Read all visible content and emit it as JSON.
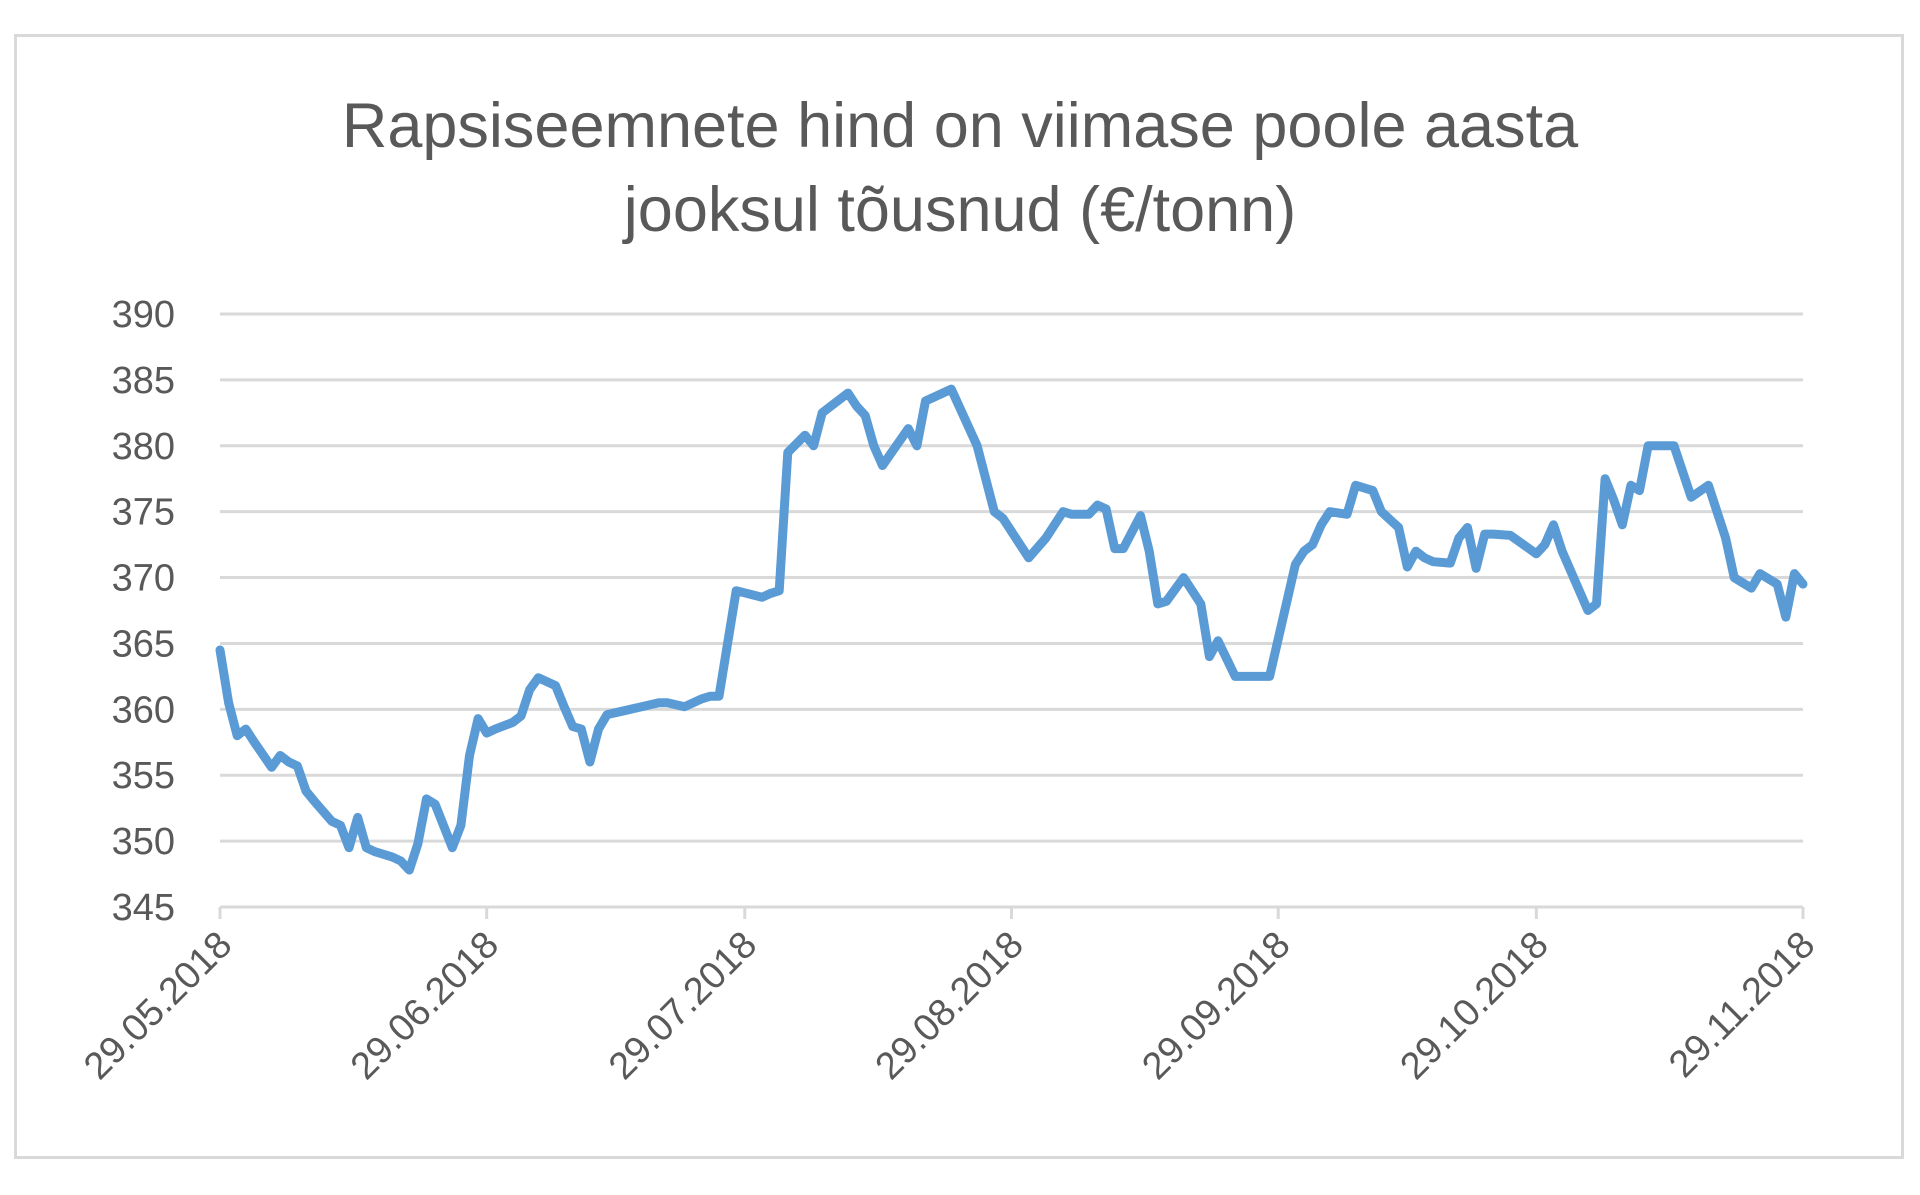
{
  "chart_data": {
    "type": "line",
    "title": "Rapsiseemnete hind on viimase poole aasta\njooksul tõusnud (€/tonn)",
    "xlabel": "",
    "ylabel": "",
    "ylim": [
      345,
      390
    ],
    "yticks": [
      345,
      350,
      355,
      360,
      365,
      370,
      375,
      380,
      385,
      390
    ],
    "xlim": [
      "2018-05-29",
      "2018-11-29"
    ],
    "xtick_labels": [
      "29.05.2018",
      "29.06.2018",
      "29.07.2018",
      "29.08.2018",
      "29.09.2018",
      "29.10.2018",
      "29.11.2018"
    ],
    "xtick_dates": [
      "2018-05-29",
      "2018-06-29",
      "2018-07-29",
      "2018-08-29",
      "2018-09-29",
      "2018-10-29",
      "2018-11-29"
    ],
    "grid": true,
    "legend": "none",
    "line_color": "#5b9bd5",
    "series": [
      {
        "x": [
          "2018-05-29",
          "2018-05-30",
          "2018-05-31",
          "2018-06-01",
          "2018-06-02",
          "2018-06-04",
          "2018-06-05",
          "2018-06-06",
          "2018-06-07",
          "2018-06-08",
          "2018-06-09",
          "2018-06-11",
          "2018-06-12",
          "2018-06-13",
          "2018-06-14",
          "2018-06-15",
          "2018-06-16",
          "2018-06-18",
          "2018-06-19",
          "2018-06-20",
          "2018-06-21",
          "2018-06-22",
          "2018-06-23",
          "2018-06-25",
          "2018-06-26",
          "2018-06-27",
          "2018-06-28",
          "2018-06-29",
          "2018-06-30",
          "2018-07-02",
          "2018-07-03",
          "2018-07-04",
          "2018-07-05",
          "2018-07-07",
          "2018-07-08",
          "2018-07-09",
          "2018-07-10",
          "2018-07-11",
          "2018-07-12",
          "2018-07-13",
          "2018-07-15",
          "2018-07-17",
          "2018-07-19",
          "2018-07-20",
          "2018-07-22",
          "2018-07-24",
          "2018-07-25",
          "2018-07-26",
          "2018-07-27",
          "2018-07-28",
          "2018-07-31",
          "2018-08-01",
          "2018-08-02",
          "2018-08-03",
          "2018-08-05",
          "2018-08-06",
          "2018-08-07",
          "2018-08-08",
          "2018-08-10",
          "2018-08-11",
          "2018-08-12",
          "2018-08-13",
          "2018-08-14",
          "2018-08-17",
          "2018-08-18",
          "2018-08-19",
          "2018-08-21",
          "2018-08-22",
          "2018-08-25",
          "2018-08-27",
          "2018-08-28",
          "2018-08-30",
          "2018-08-31",
          "2018-09-02",
          "2018-09-03",
          "2018-09-04",
          "2018-09-05",
          "2018-09-07",
          "2018-09-08",
          "2018-09-09",
          "2018-09-10",
          "2018-09-11",
          "2018-09-13",
          "2018-09-14",
          "2018-09-15",
          "2018-09-16",
          "2018-09-18",
          "2018-09-19",
          "2018-09-20",
          "2018-09-21",
          "2018-09-22",
          "2018-09-24",
          "2018-09-26",
          "2018-09-28",
          "2018-10-01",
          "2018-10-02",
          "2018-10-03",
          "2018-10-04",
          "2018-10-05",
          "2018-10-07",
          "2018-10-08",
          "2018-10-10",
          "2018-10-11",
          "2018-10-13",
          "2018-10-14",
          "2018-10-15",
          "2018-10-16",
          "2018-10-17",
          "2018-10-19",
          "2018-10-20",
          "2018-10-21",
          "2018-10-22",
          "2018-10-23",
          "2018-10-24",
          "2018-10-26",
          "2018-10-29",
          "2018-10-30",
          "2018-10-31",
          "2018-11-01",
          "2018-11-04",
          "2018-11-05",
          "2018-11-06",
          "2018-11-07",
          "2018-11-08",
          "2018-11-09",
          "2018-11-10",
          "2018-11-11",
          "2018-11-12",
          "2018-11-14",
          "2018-11-16",
          "2018-11-18",
          "2018-11-20",
          "2018-11-21",
          "2018-11-23",
          "2018-11-24",
          "2018-11-26",
          "2018-11-27",
          "2018-11-28",
          "2018-11-29"
        ],
        "y": [
          364.5,
          360.5,
          358,
          358.5,
          357.5,
          355.6,
          356.5,
          356,
          355.7,
          353.8,
          353,
          351.5,
          351.2,
          349.5,
          351.8,
          349.5,
          349.2,
          348.8,
          348.5,
          347.8,
          349.8,
          353.2,
          352.8,
          349.5,
          351.2,
          356.5,
          359.3,
          358.2,
          358.5,
          359,
          359.5,
          361.5,
          362.4,
          361.8,
          360.2,
          358.7,
          358.5,
          356,
          358.5,
          359.6,
          359.9,
          360.2,
          360.5,
          360.5,
          360.2,
          360.8,
          361,
          361,
          365,
          369,
          368.5,
          368.8,
          369,
          379.5,
          380.8,
          380,
          382.5,
          383,
          384,
          383,
          382.3,
          380,
          378.5,
          381.3,
          380,
          383.4,
          384,
          384.3,
          380,
          375,
          374.5,
          372.5,
          371.5,
          373,
          374,
          375,
          374.8,
          374.8,
          375.5,
          375.2,
          372.2,
          372.2,
          374.7,
          372,
          368,
          368.2,
          370,
          369,
          368,
          364,
          365.2,
          362.5,
          362.5,
          362.5,
          371,
          372,
          372.5,
          374,
          375,
          374.8,
          377,
          376.6,
          375,
          373.8,
          370.8,
          372,
          371.5,
          371.2,
          371.1,
          373,
          373.8,
          370.7,
          373.3,
          373.3,
          373.2,
          371.8,
          372.5,
          374,
          372,
          367.5,
          368,
          377.5,
          375.9,
          374,
          377,
          376.6,
          380,
          380,
          380,
          376.1,
          377,
          373,
          370,
          369.2,
          370.3,
          369.5,
          367,
          370.3,
          369.5
        ]
      }
    ]
  }
}
